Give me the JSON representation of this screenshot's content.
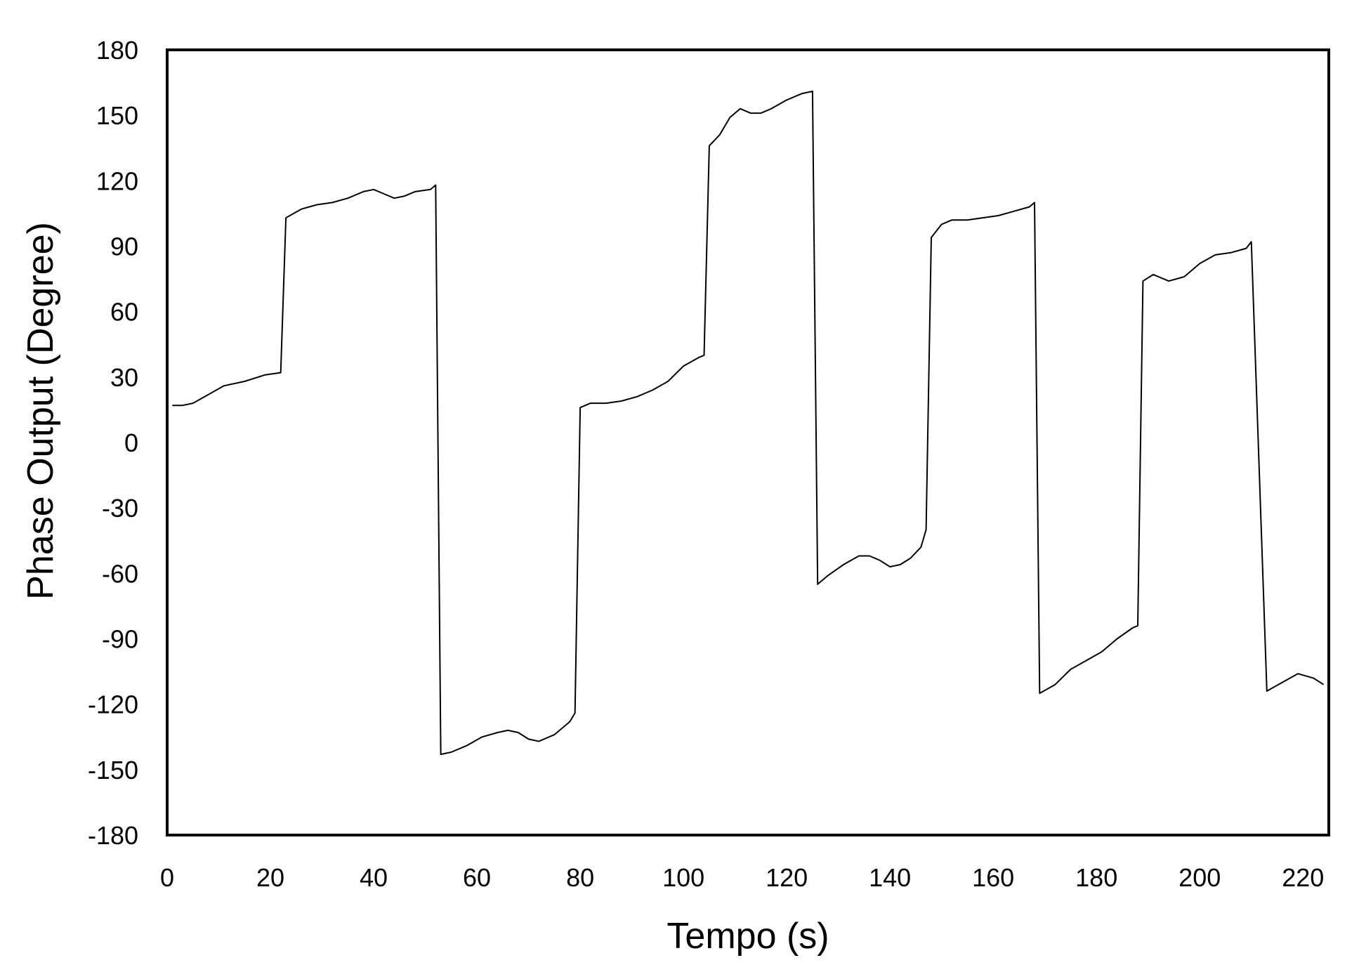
{
  "chart_data": {
    "type": "line",
    "title": "",
    "xlabel": "Tempo (s)",
    "ylabel": "Phase Output (Degree)",
    "xlim": [
      0,
      225
    ],
    "ylim": [
      -180,
      180
    ],
    "x_ticks": [
      "0",
      "20",
      "40",
      "60",
      "80",
      "100",
      "120",
      "140",
      "160",
      "180",
      "200",
      "220"
    ],
    "y_ticks": [
      "180",
      "150",
      "120",
      "90",
      "60",
      "30",
      "0",
      "-30",
      "-60",
      "-90",
      "-120",
      "-150",
      "-180"
    ],
    "grid": false,
    "legend": "none",
    "line_color": "#000000",
    "series": [
      {
        "x": [
          1,
          3,
          5,
          8,
          11,
          15,
          19,
          22,
          23,
          26,
          29,
          32,
          35,
          38,
          40,
          42,
          44,
          46,
          48,
          51,
          52,
          53,
          55,
          58,
          61,
          64,
          66,
          68,
          70,
          72,
          75,
          78,
          79,
          80,
          82,
          85,
          88,
          91,
          94,
          97,
          100,
          103,
          104,
          105,
          107,
          109,
          111,
          113,
          115,
          117,
          120,
          123,
          125,
          126,
          128,
          131,
          134,
          136,
          138,
          140,
          142,
          144,
          146,
          147,
          148,
          150,
          152,
          155,
          158,
          161,
          164,
          167,
          168,
          169,
          172,
          175,
          178,
          181,
          184,
          187,
          188,
          189,
          191,
          194,
          197,
          200,
          203,
          206,
          209,
          210,
          213,
          216,
          219,
          222,
          224
        ],
        "y": [
          17,
          17,
          18,
          22,
          26,
          28,
          31,
          32,
          103,
          107,
          109,
          110,
          112,
          115,
          116,
          114,
          112,
          113,
          115,
          116,
          118,
          -143,
          -142,
          -139,
          -135,
          -133,
          -132,
          -133,
          -136,
          -137,
          -134,
          -128,
          -124,
          16,
          18,
          18,
          19,
          21,
          24,
          28,
          35,
          39,
          40,
          136,
          141,
          149,
          153,
          151,
          151,
          153,
          157,
          160,
          161,
          -65,
          -61,
          -56,
          -52,
          -52,
          -54,
          -57,
          -56,
          -53,
          -48,
          -40,
          94,
          100,
          102,
          102,
          103,
          104,
          106,
          108,
          110,
          -115,
          -111,
          -104,
          -100,
          -96,
          -90,
          -85,
          -84,
          74,
          77,
          74,
          76,
          82,
          86,
          87,
          89,
          92,
          -114,
          -110,
          -106,
          -108,
          -111
        ]
      }
    ]
  }
}
